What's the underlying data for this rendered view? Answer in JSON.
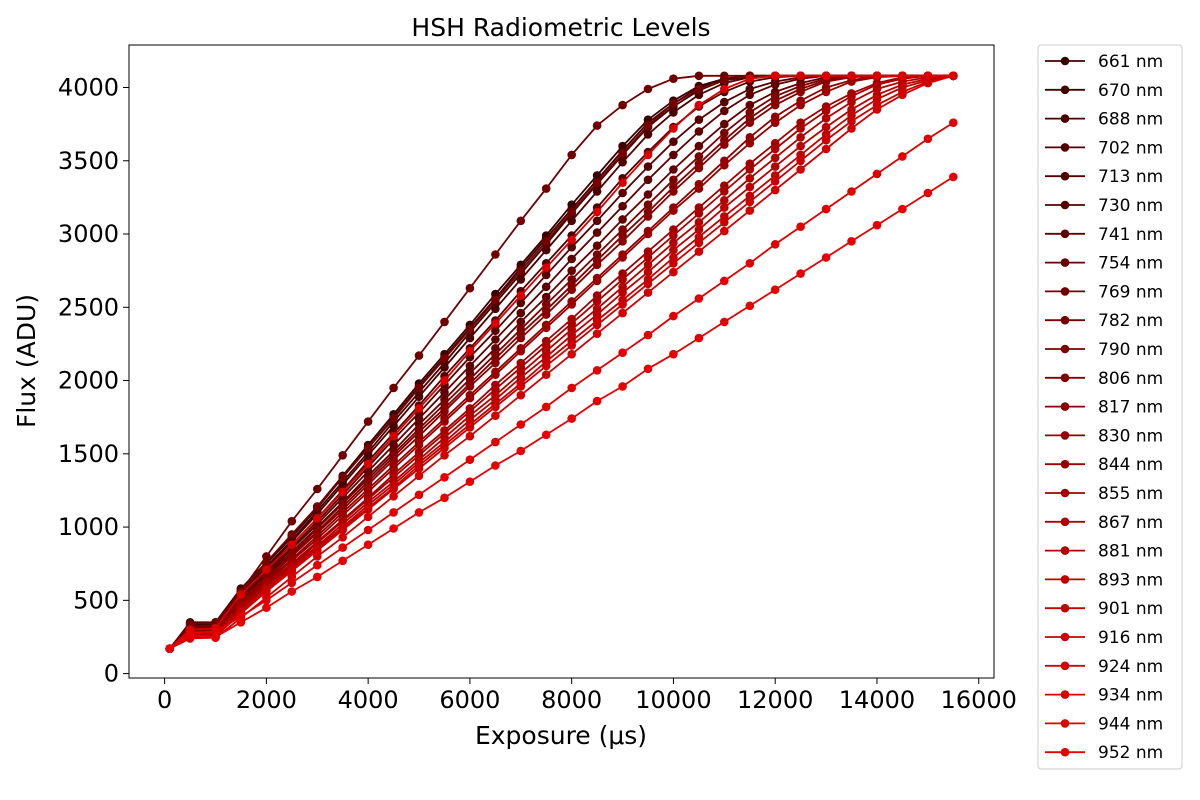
{
  "chart_data": {
    "type": "line",
    "title": "HSH Radiometric Levels",
    "xlabel": "Exposure (μs)",
    "ylabel": "Flux (ADU)",
    "xlim": [
      -700,
      16300
    ],
    "ylim": [
      -30,
      4290
    ],
    "x_ticks": [
      0,
      2000,
      4000,
      6000,
      8000,
      10000,
      12000,
      14000,
      16000
    ],
    "y_ticks": [
      0,
      500,
      1000,
      1500,
      2000,
      2500,
      3000,
      3500,
      4000
    ],
    "grid": false,
    "legend_position": "outside-right",
    "x": [
      100,
      500,
      1000,
      1500,
      2000,
      2500,
      3000,
      3500,
      4000,
      4500,
      5000,
      5500,
      6000,
      6500,
      7000,
      7500,
      8000,
      8500,
      9000,
      9500,
      10000,
      10500,
      11000,
      11500,
      12000,
      12500,
      13000,
      13500,
      14000,
      14500,
      15000,
      15500
    ],
    "series": [
      {
        "name": "661 nm",
        "color": "#3b0000",
        "values": [
          170,
          350,
          350,
          580,
          760,
          940,
          1140,
          1350,
          1560,
          1770,
          1980,
          2180,
          2380,
          2590,
          2790,
          2990,
          3200,
          3400,
          3600,
          3780,
          3910,
          4010,
          4060,
          4080,
          4080,
          4080,
          4080,
          4080,
          4080,
          4080,
          4080,
          4080
        ]
      },
      {
        "name": "670 nm",
        "color": "#400000",
        "values": [
          170,
          340,
          345,
          570,
          750,
          930,
          1130,
          1340,
          1540,
          1750,
          1960,
          2160,
          2360,
          2560,
          2770,
          2970,
          3170,
          3370,
          3570,
          3760,
          3890,
          4000,
          4050,
          4080,
          4080,
          4080,
          4080,
          4080,
          4080,
          4080,
          4080,
          4080
        ]
      },
      {
        "name": "688 nm",
        "color": "#460000",
        "values": [
          170,
          330,
          340,
          560,
          730,
          910,
          1110,
          1310,
          1510,
          1720,
          1920,
          2120,
          2330,
          2530,
          2730,
          2930,
          3140,
          3340,
          3540,
          3730,
          3870,
          3980,
          4050,
          4070,
          4080,
          4080,
          4080,
          4080,
          4080,
          4080,
          4080,
          4080
        ]
      },
      {
        "name": "702 nm",
        "color": "#4c0000",
        "values": [
          170,
          320,
          330,
          550,
          720,
          900,
          1090,
          1290,
          1490,
          1690,
          1890,
          2090,
          2290,
          2490,
          2690,
          2890,
          3090,
          3290,
          3490,
          3680,
          3830,
          3950,
          4030,
          4070,
          4080,
          4080,
          4080,
          4080,
          4080,
          4080,
          4080,
          4080
        ]
      },
      {
        "name": "713 nm",
        "color": "#520000",
        "values": [
          170,
          310,
          320,
          540,
          700,
          880,
          1060,
          1250,
          1450,
          1640,
          1830,
          2030,
          2220,
          2410,
          2610,
          2800,
          2990,
          3180,
          3380,
          3560,
          3730,
          3870,
          3970,
          4040,
          4070,
          4080,
          4080,
          4080,
          4080,
          4080,
          4080,
          4080
        ]
      },
      {
        "name": "730 nm",
        "color": "#580000",
        "values": [
          170,
          310,
          315,
          530,
          690,
          860,
          1040,
          1220,
          1410,
          1600,
          1780,
          1970,
          2160,
          2340,
          2530,
          2720,
          2910,
          3090,
          3280,
          3460,
          3630,
          3780,
          3900,
          3990,
          4040,
          4070,
          4080,
          4080,
          4080,
          4080,
          4080,
          4080
        ]
      },
      {
        "name": "741 nm",
        "color": "#5e0000",
        "values": [
          170,
          300,
          310,
          520,
          680,
          850,
          1020,
          1200,
          1380,
          1560,
          1740,
          1920,
          2100,
          2280,
          2460,
          2640,
          2830,
          3010,
          3190,
          3370,
          3540,
          3700,
          3840,
          3950,
          4020,
          4060,
          4080,
          4080,
          4080,
          4080,
          4080,
          4080
        ]
      },
      {
        "name": "754 nm",
        "color": "#640000",
        "values": [
          170,
          300,
          305,
          510,
          670,
          830,
          1000,
          1170,
          1350,
          1520,
          1700,
          1870,
          2050,
          2220,
          2400,
          2570,
          2750,
          2920,
          3100,
          3270,
          3440,
          3600,
          3750,
          3880,
          3970,
          4030,
          4070,
          4080,
          4080,
          4080,
          4080,
          4080
        ]
      },
      {
        "name": "769 nm",
        "color": "#700000",
        "values": [
          170,
          340,
          350,
          560,
          800,
          1040,
          1260,
          1490,
          1720,
          1950,
          2170,
          2400,
          2630,
          2860,
          3090,
          3310,
          3540,
          3740,
          3880,
          3990,
          4060,
          4080,
          4080,
          4080,
          4080,
          4080,
          4080,
          4080,
          4080,
          4080,
          4080,
          4080
        ]
      },
      {
        "name": "782 nm",
        "color": "#760000",
        "values": [
          170,
          320,
          330,
          560,
          760,
          950,
          1140,
          1340,
          1540,
          1740,
          1950,
          2150,
          2350,
          2550,
          2750,
          2950,
          3150,
          3350,
          3550,
          3740,
          3890,
          3990,
          4050,
          4080,
          4080,
          4080,
          4080,
          4080,
          4080,
          4080,
          4080,
          4080
        ]
      },
      {
        "name": "790 nm",
        "color": "#7c0000",
        "values": [
          170,
          300,
          305,
          510,
          660,
          820,
          990,
          1160,
          1330,
          1500,
          1670,
          1840,
          2010,
          2180,
          2350,
          2520,
          2690,
          2860,
          3030,
          3200,
          3370,
          3530,
          3690,
          3830,
          3940,
          4010,
          4060,
          4080,
          4080,
          4080,
          4080,
          4080
        ]
      },
      {
        "name": "806 nm",
        "color": "#820000",
        "values": [
          170,
          295,
          300,
          500,
          650,
          810,
          970,
          1140,
          1310,
          1480,
          1650,
          1810,
          1980,
          2150,
          2320,
          2480,
          2650,
          2820,
          2990,
          3150,
          3320,
          3480,
          3640,
          3790,
          3910,
          3990,
          4050,
          4080,
          4080,
          4080,
          4080,
          4080
        ]
      },
      {
        "name": "817 nm",
        "color": "#8a0000",
        "values": [
          170,
          290,
          295,
          490,
          640,
          800,
          960,
          1120,
          1290,
          1460,
          1620,
          1790,
          1960,
          2120,
          2290,
          2450,
          2620,
          2790,
          2950,
          3120,
          3290,
          3450,
          3610,
          3760,
          3880,
          3970,
          4040,
          4070,
          4080,
          4080,
          4080,
          4080
        ]
      },
      {
        "name": "830 nm",
        "color": "#920000",
        "values": [
          170,
          285,
          290,
          480,
          630,
          780,
          940,
          1100,
          1260,
          1420,
          1580,
          1740,
          1900,
          2060,
          2220,
          2380,
          2540,
          2700,
          2860,
          3020,
          3180,
          3340,
          3500,
          3660,
          3800,
          3910,
          4000,
          4050,
          4080,
          4080,
          4080,
          4080
        ]
      },
      {
        "name": "844 nm",
        "color": "#9a0000",
        "values": [
          170,
          280,
          285,
          470,
          620,
          770,
          920,
          1080,
          1240,
          1400,
          1560,
          1720,
          1880,
          2040,
          2200,
          2360,
          2520,
          2680,
          2840,
          3000,
          3160,
          3310,
          3470,
          3620,
          3760,
          3880,
          3970,
          4040,
          4070,
          4080,
          4080,
          4080
        ]
      },
      {
        "name": "855 nm",
        "color": "#a20000",
        "values": [
          170,
          275,
          280,
          460,
          610,
          750,
          900,
          1050,
          1200,
          1360,
          1510,
          1660,
          1810,
          1970,
          2120,
          2270,
          2420,
          2580,
          2730,
          2880,
          3030,
          3180,
          3330,
          3480,
          3620,
          3760,
          3870,
          3960,
          4030,
          4070,
          4080,
          4080
        ]
      },
      {
        "name": "867 nm",
        "color": "#aa0000",
        "values": [
          170,
          270,
          275,
          450,
          600,
          740,
          890,
          1040,
          1190,
          1340,
          1490,
          1640,
          1790,
          1940,
          2090,
          2240,
          2390,
          2540,
          2690,
          2840,
          2990,
          3140,
          3290,
          3440,
          3580,
          3720,
          3840,
          3940,
          4020,
          4060,
          4080,
          4080
        ]
      },
      {
        "name": "881 nm",
        "color": "#b20000",
        "values": [
          170,
          265,
          270,
          440,
          590,
          730,
          870,
          1020,
          1170,
          1310,
          1460,
          1610,
          1760,
          1900,
          2050,
          2200,
          2350,
          2490,
          2640,
          2790,
          2940,
          3080,
          3230,
          3380,
          3520,
          3660,
          3790,
          3900,
          3990,
          4040,
          4070,
          4080
        ]
      },
      {
        "name": "893 nm",
        "color": "#ba0000",
        "values": [
          170,
          260,
          265,
          430,
          580,
          720,
          860,
          1000,
          1150,
          1290,
          1440,
          1580,
          1730,
          1870,
          2020,
          2160,
          2310,
          2450,
          2600,
          2740,
          2890,
          3030,
          3180,
          3320,
          3460,
          3600,
          3730,
          3850,
          3950,
          4020,
          4060,
          4080
        ]
      },
      {
        "name": "901 nm",
        "color": "#c20000",
        "values": [
          170,
          255,
          260,
          420,
          570,
          710,
          850,
          990,
          1130,
          1270,
          1420,
          1560,
          1700,
          1840,
          1980,
          2130,
          2270,
          2410,
          2550,
          2690,
          2840,
          2980,
          3120,
          3260,
          3400,
          3540,
          3680,
          3810,
          3920,
          4000,
          4050,
          4080
        ]
      },
      {
        "name": "916 nm",
        "color": "#ca0000",
        "values": [
          170,
          250,
          255,
          410,
          560,
          700,
          840,
          980,
          1120,
          1260,
          1400,
          1540,
          1680,
          1820,
          1960,
          2100,
          2240,
          2380,
          2520,
          2660,
          2800,
          2940,
          3080,
          3220,
          3360,
          3500,
          3640,
          3770,
          3880,
          3970,
          4040,
          4080
        ]
      },
      {
        "name": "924 nm",
        "color": "#d20000",
        "values": [
          170,
          240,
          245,
          380,
          520,
          660,
          800,
          930,
          1070,
          1210,
          1350,
          1490,
          1620,
          1760,
          1900,
          2040,
          2180,
          2320,
          2460,
          2600,
          2740,
          2880,
          3020,
          3160,
          3300,
          3440,
          3580,
          3720,
          3850,
          3950,
          4030,
          4080
        ]
      },
      {
        "name": "934 nm",
        "color": "#da0000",
        "values": [
          170,
          300,
          310,
          540,
          710,
          880,
          1060,
          1240,
          1430,
          1620,
          1810,
          2000,
          2200,
          2390,
          2580,
          2770,
          2960,
          3150,
          3350,
          3540,
          3720,
          3880,
          3990,
          4060,
          4080,
          4080,
          4080,
          4080,
          4080,
          4080,
          4080,
          4080
        ]
      },
      {
        "name": "944 nm",
        "color": "#e00000",
        "values": [
          170,
          280,
          285,
          390,
          500,
          620,
          740,
          860,
          980,
          1100,
          1220,
          1340,
          1460,
          1580,
          1700,
          1820,
          1950,
          2070,
          2190,
          2310,
          2440,
          2560,
          2680,
          2800,
          2930,
          3050,
          3170,
          3290,
          3410,
          3530,
          3650,
          3760
        ]
      },
      {
        "name": "952 nm",
        "color": "#e60000",
        "values": [
          170,
          260,
          250,
          350,
          450,
          560,
          660,
          770,
          880,
          990,
          1100,
          1200,
          1310,
          1420,
          1520,
          1630,
          1740,
          1860,
          1960,
          2080,
          2180,
          2290,
          2400,
          2510,
          2620,
          2730,
          2840,
          2950,
          3060,
          3170,
          3280,
          3390
        ]
      }
    ]
  }
}
